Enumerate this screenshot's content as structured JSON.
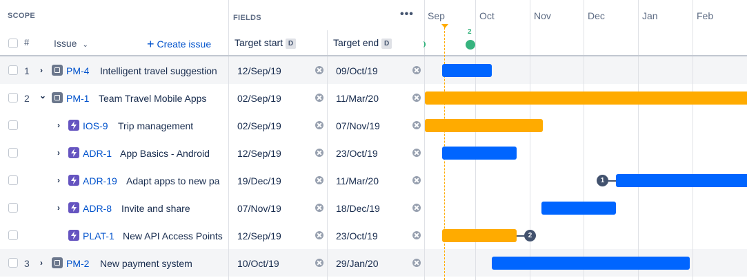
{
  "header": {
    "scope_label": "SCOPE",
    "fields_label": "FIELDS",
    "more_label": "•••",
    "hash_label": "#",
    "issue_label": "Issue",
    "create_label": "Create issue",
    "target_start_label": "Target start",
    "target_end_label": "Target end",
    "date_badge": "D"
  },
  "timeline": {
    "months": [
      "Sep",
      "Oct",
      "Nov",
      "Dec",
      "Jan",
      "Feb"
    ],
    "release_count": "2"
  },
  "rows": [
    {
      "num": "1",
      "key": "PM-4",
      "summary": "Intelligent travel suggestion",
      "start": "12/Sep/19",
      "end": "09/Oct/19",
      "type": "epic",
      "expander": "right"
    },
    {
      "num": "2",
      "key": "PM-1",
      "summary": "Team Travel Mobile Apps",
      "start": "02/Sep/19",
      "end": "11/Mar/20",
      "type": "epic",
      "expander": "down"
    },
    {
      "num": "",
      "key": "IOS-9",
      "summary": "Trip management",
      "start": "02/Sep/19",
      "end": "07/Nov/19",
      "type": "story",
      "expander": "right"
    },
    {
      "num": "",
      "key": "ADR-1",
      "summary": "App Basics - Android",
      "start": "12/Sep/19",
      "end": "23/Oct/19",
      "type": "story",
      "expander": "right"
    },
    {
      "num": "",
      "key": "ADR-19",
      "summary": "Adapt apps to new pa",
      "start": "19/Dec/19",
      "end": "11/Mar/20",
      "type": "story",
      "expander": "right"
    },
    {
      "num": "",
      "key": "ADR-8",
      "summary": "Invite and share",
      "start": "07/Nov/19",
      "end": "18/Dec/19",
      "type": "story",
      "expander": "right"
    },
    {
      "num": "",
      "key": "PLAT-1",
      "summary": "New API Access Points",
      "start": "12/Sep/19",
      "end": "23/Oct/19",
      "type": "story",
      "expander": "none"
    },
    {
      "num": "3",
      "key": "PM-2",
      "summary": "New payment system",
      "start": "10/Oct/19",
      "end": "29/Jan/20",
      "type": "epic",
      "expander": "right"
    }
  ],
  "dependencies": {
    "adr19_badge": "1",
    "plat1_badge": "2"
  },
  "colors": {
    "bar_blue": "#0065ff",
    "bar_orange": "#ffab00",
    "link": "#0052cc",
    "release_green": "#36b37e"
  }
}
